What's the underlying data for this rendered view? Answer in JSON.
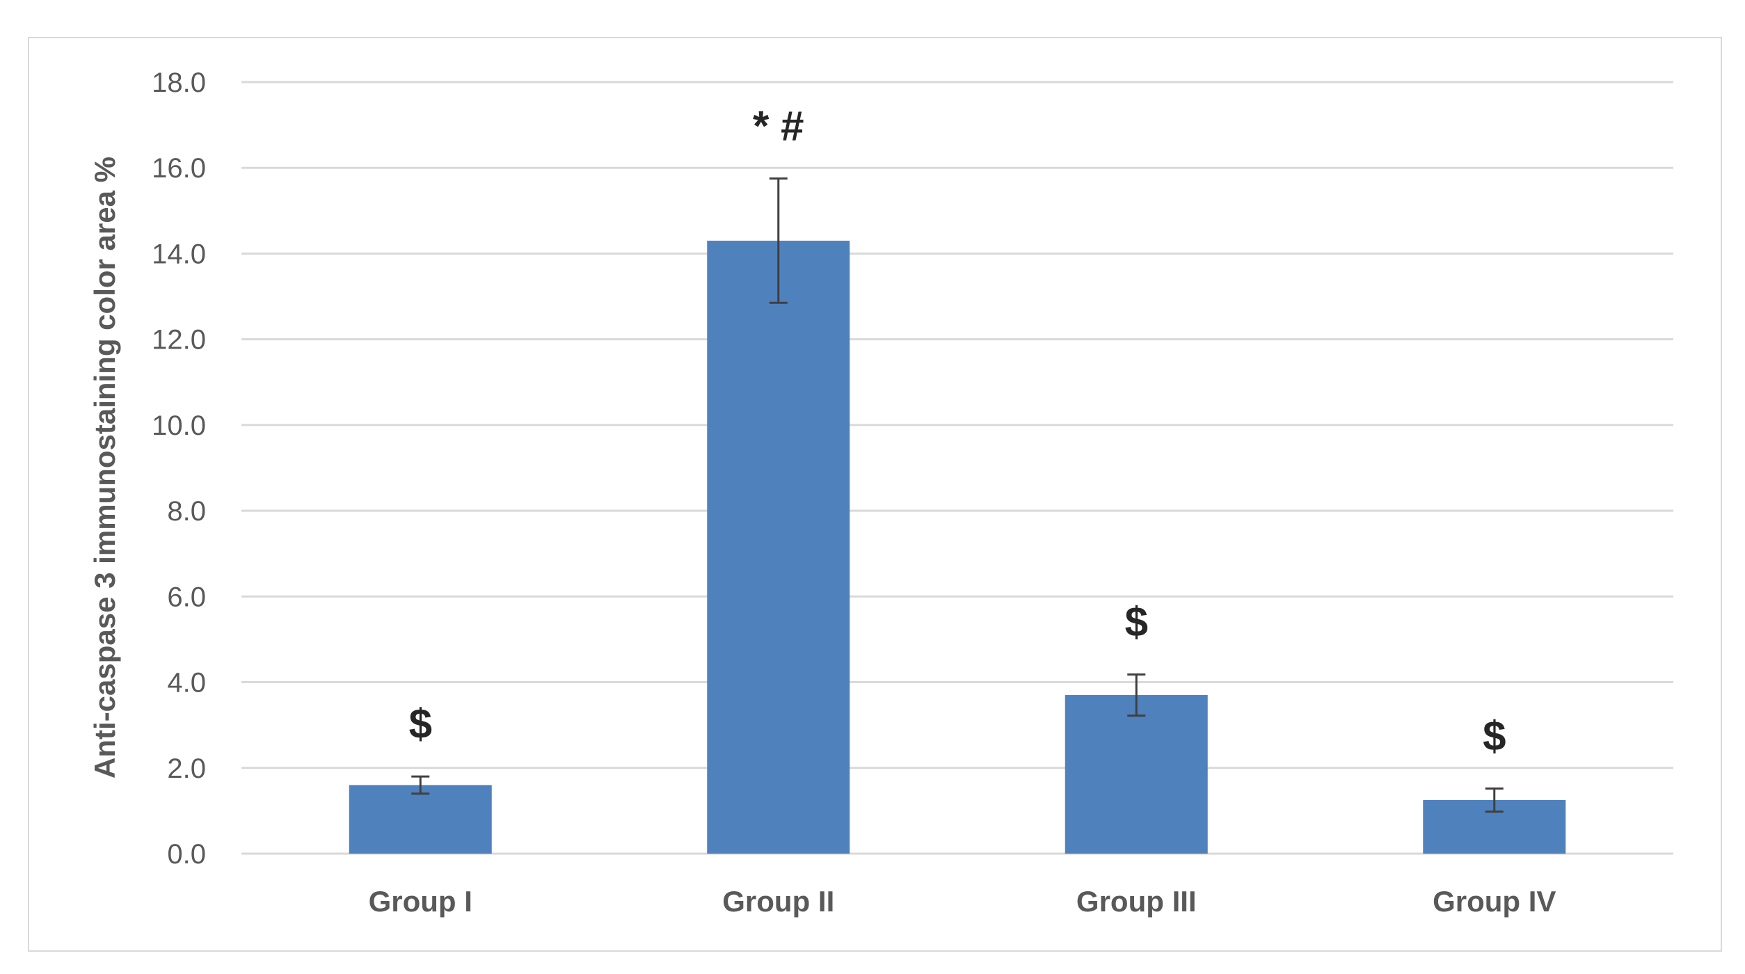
{
  "chart_data": {
    "type": "bar",
    "title": "",
    "xlabel": "",
    "ylabel": "Anti-caspase 3 immunostaining color area %",
    "categories": [
      "Group I",
      "Group II",
      "Group III",
      "Group IV"
    ],
    "values": [
      1.6,
      14.3,
      3.7,
      1.25
    ],
    "errors": [
      0.2,
      1.45,
      0.48,
      0.27
    ],
    "annotations": [
      "$",
      "* #",
      "$",
      "$"
    ],
    "ylim": [
      0,
      18
    ],
    "yticks": [
      "0.0",
      "2.0",
      "4.0",
      "6.0",
      "8.0",
      "10.0",
      "12.0",
      "14.0",
      "16.0",
      "18.0"
    ],
    "grid": true,
    "legend": "none",
    "colors": {
      "bar": "#4f81bd",
      "grid": "#d9d9d9",
      "error_bar": "#404040"
    }
  }
}
